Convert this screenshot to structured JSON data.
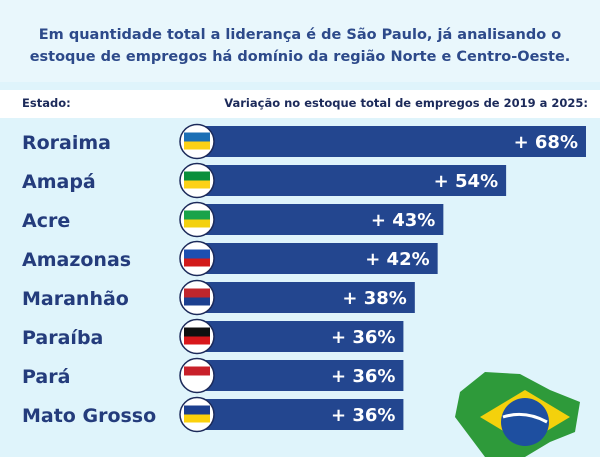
{
  "header": {
    "subtitle_line1": "Em quantidade total a liderança é de São Paulo, já analisando o",
    "subtitle_line2": "estoque de empregos há domínio da região Norte e Centro-Oeste."
  },
  "chart_data": {
    "type": "bar",
    "orientation": "horizontal",
    "category_header": "Estado:",
    "value_header": "Variação no estoque total de empregos de 2019 a 2025:",
    "categories": [
      "Roraima",
      "Amapá",
      "Acre",
      "Amazonas",
      "Maranhão",
      "Paraíba",
      "Pará",
      "Mato Grosso"
    ],
    "values": [
      68,
      54,
      43,
      42,
      38,
      36,
      36,
      36
    ],
    "value_labels": [
      "+ 68%",
      "+ 54%",
      "+ 43%",
      "+ 42%",
      "+ 38%",
      "+ 36%",
      "+ 36%",
      "+ 36%"
    ],
    "unit": "%",
    "xlim": [
      0,
      68
    ],
    "bar_color": "#23468f",
    "label_color": "#243c7c"
  }
}
